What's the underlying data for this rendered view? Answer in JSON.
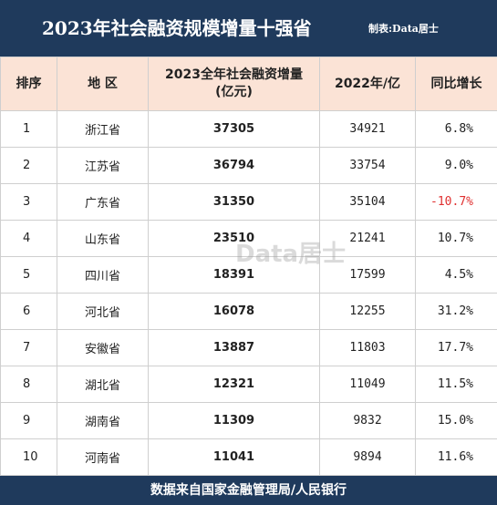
{
  "header": {
    "title": "2023年社会融资规模增量十强省",
    "credit": "制表:Data居士"
  },
  "table": {
    "columns": [
      "排序",
      "地 区",
      [
        "2023全年社会融资增量",
        "(亿元)"
      ],
      "2022年/亿",
      "同比增长"
    ],
    "rows": [
      [
        1,
        "浙江省",
        37305,
        34921,
        "6.8%"
      ],
      [
        2,
        "江苏省",
        36794,
        33754,
        "9.0%"
      ],
      [
        3,
        "广东省",
        31350,
        35104,
        "-10.7%"
      ],
      [
        4,
        "山东省",
        23510,
        21241,
        "10.7%"
      ],
      [
        5,
        "四川省",
        18391,
        17599,
        "4.5%"
      ],
      [
        6,
        "河北省",
        16078,
        12255,
        "31.2%"
      ],
      [
        7,
        "安徽省",
        13887,
        11803,
        "17.7%"
      ],
      [
        8,
        "湖北省",
        12321,
        11049,
        "11.5%"
      ],
      [
        9,
        "湖南省",
        11309,
        9832,
        "15.0%"
      ],
      [
        10,
        "河南省",
        11041,
        9894,
        "11.6%"
      ]
    ]
  },
  "watermark": "Data居士",
  "footer": {
    "source": "数据来自国家金融管理局/人民银行"
  }
}
